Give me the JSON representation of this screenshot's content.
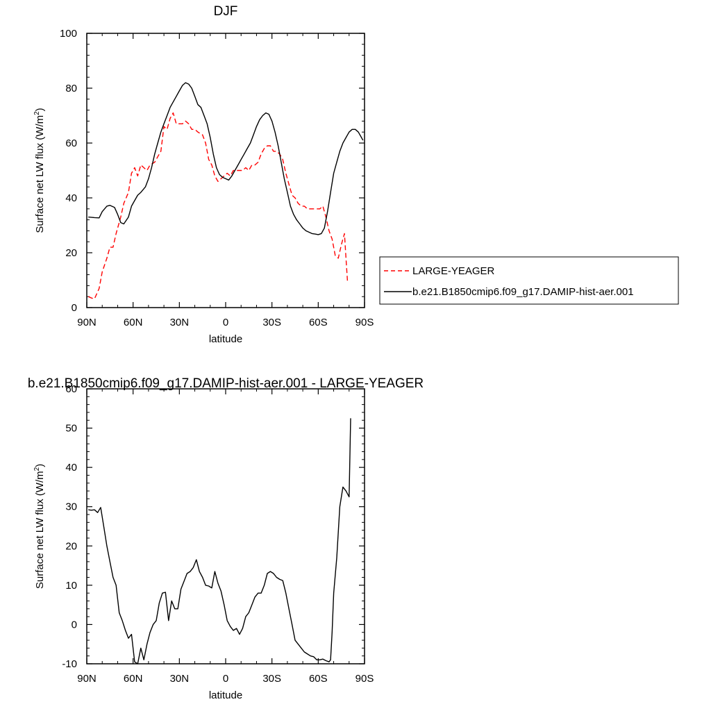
{
  "chart_data": [
    {
      "type": "line",
      "title": "DJF",
      "xlabel": "latitude",
      "ylabel": "Surface net LW flux (W/m",
      "ylabel_superscript": "2",
      "ylabel_suffix": ")",
      "xlim": [
        90,
        -90
      ],
      "ylim": [
        0,
        100
      ],
      "x_ticks": [
        90,
        60,
        30,
        0,
        -30,
        -60,
        -90
      ],
      "x_tick_labels": [
        "90N",
        "60N",
        "30N",
        "0",
        "30S",
        "60S",
        "90S"
      ],
      "y_ticks": [
        0,
        20,
        40,
        60,
        80,
        100
      ],
      "y_tick_labels": [
        "0",
        "20",
        "40",
        "60",
        "80",
        "100"
      ],
      "legend_position": "right",
      "series": [
        {
          "name": "LARGE-YEAGER",
          "color": "#ff0000",
          "dash": "dashed",
          "points": [
            [
              89,
              4
            ],
            [
              87,
              3.5
            ],
            [
              85,
              3.2
            ],
            [
              82,
              7
            ],
            [
              80,
              13
            ],
            [
              77,
              18
            ],
            [
              75,
              22
            ],
            [
              73,
              22
            ],
            [
              71,
              27
            ],
            [
              68,
              33
            ],
            [
              66,
              38
            ],
            [
              63,
              42
            ],
            [
              61,
              49
            ],
            [
              59,
              51
            ],
            [
              57,
              48
            ],
            [
              55,
              52
            ],
            [
              53,
              51
            ],
            [
              51,
              50
            ],
            [
              49,
              52
            ],
            [
              46,
              53
            ],
            [
              44,
              55
            ],
            [
              42,
              57
            ],
            [
              40,
              66
            ],
            [
              38,
              65
            ],
            [
              36,
              69
            ],
            [
              34,
              71
            ],
            [
              32,
              67
            ],
            [
              30,
              67
            ],
            [
              28,
              67
            ],
            [
              26,
              68
            ],
            [
              24,
              67
            ],
            [
              22,
              65
            ],
            [
              20,
              65
            ],
            [
              18,
              64
            ],
            [
              15,
              63
            ],
            [
              13,
              60
            ],
            [
              11,
              54
            ],
            [
              9,
              52
            ],
            [
              7,
              48
            ],
            [
              5,
              46
            ],
            [
              3,
              47
            ],
            [
              1,
              48
            ],
            [
              -1,
              49
            ],
            [
              -3,
              48
            ],
            [
              -5,
              50
            ],
            [
              -7,
              50
            ],
            [
              -9,
              50
            ],
            [
              -11,
              50
            ],
            [
              -13,
              51
            ],
            [
              -15,
              50
            ],
            [
              -17,
              52
            ],
            [
              -19,
              52
            ],
            [
              -21,
              53
            ],
            [
              -23,
              56
            ],
            [
              -25,
              58
            ],
            [
              -27,
              59
            ],
            [
              -29,
              59
            ],
            [
              -31,
              57
            ],
            [
              -33,
              57
            ],
            [
              -35,
              56
            ],
            [
              -37,
              54
            ],
            [
              -39,
              49
            ],
            [
              -41,
              45
            ],
            [
              -43,
              41
            ],
            [
              -45,
              40
            ],
            [
              -47,
              38
            ],
            [
              -49,
              37
            ],
            [
              -51,
              37
            ],
            [
              -53,
              36
            ],
            [
              -55,
              36
            ],
            [
              -57,
              36
            ],
            [
              -59,
              36
            ],
            [
              -61,
              36
            ],
            [
              -63,
              37
            ],
            [
              -65,
              33
            ],
            [
              -67,
              28
            ],
            [
              -69,
              25
            ],
            [
              -71,
              19
            ],
            [
              -73,
              18
            ],
            [
              -75,
              23
            ],
            [
              -77,
              27
            ],
            [
              -78,
              18
            ],
            [
              -79,
              9
            ]
          ]
        },
        {
          "name": "b.e21.B1850cmip6.f09_g17.DAMIP-hist-aer.001",
          "color": "#000000",
          "dash": "solid",
          "points": [
            [
              89,
              33
            ],
            [
              85,
              32.8
            ],
            [
              82,
              32.7
            ],
            [
              80,
              35
            ],
            [
              77,
              37
            ],
            [
              75,
              37.3
            ],
            [
              72,
              36.5
            ],
            [
              70,
              34
            ],
            [
              68,
              31
            ],
            [
              66,
              30.5
            ],
            [
              63,
              33
            ],
            [
              61,
              37
            ],
            [
              59,
              39
            ],
            [
              57,
              41
            ],
            [
              55,
              42
            ],
            [
              52,
              44
            ],
            [
              50,
              47
            ],
            [
              48,
              51
            ],
            [
              46,
              56
            ],
            [
              44,
              60
            ],
            [
              42,
              64
            ],
            [
              40,
              67
            ],
            [
              38,
              70
            ],
            [
              36,
              73
            ],
            [
              34,
              75
            ],
            [
              32,
              77
            ],
            [
              30,
              79
            ],
            [
              28,
              81
            ],
            [
              26,
              82
            ],
            [
              24,
              81.5
            ],
            [
              22,
              80
            ],
            [
              20,
              77
            ],
            [
              18,
              74
            ],
            [
              16,
              73
            ],
            [
              14,
              70
            ],
            [
              12,
              67
            ],
            [
              10,
              62
            ],
            [
              8,
              56
            ],
            [
              6,
              51
            ],
            [
              4,
              48.5
            ],
            [
              2,
              47.5
            ],
            [
              0,
              47
            ],
            [
              -2,
              46.5
            ],
            [
              -4,
              48
            ],
            [
              -6,
              50
            ],
            [
              -8,
              52
            ],
            [
              -10,
              54
            ],
            [
              -12,
              56
            ],
            [
              -14,
              58
            ],
            [
              -16,
              60
            ],
            [
              -18,
              63
            ],
            [
              -20,
              66
            ],
            [
              -22,
              68.5
            ],
            [
              -24,
              70
            ],
            [
              -26,
              71
            ],
            [
              -28,
              70.5
            ],
            [
              -30,
              68
            ],
            [
              -32,
              64
            ],
            [
              -34,
              59
            ],
            [
              -36,
              53
            ],
            [
              -38,
              47
            ],
            [
              -40,
              42
            ],
            [
              -42,
              37
            ],
            [
              -44,
              34
            ],
            [
              -46,
              32
            ],
            [
              -48,
              30.5
            ],
            [
              -50,
              29
            ],
            [
              -52,
              28
            ],
            [
              -54,
              27.5
            ],
            [
              -56,
              27
            ],
            [
              -58,
              26.8
            ],
            [
              -60,
              26.6
            ],
            [
              -62,
              27
            ],
            [
              -64,
              29
            ],
            [
              -66,
              35
            ],
            [
              -68,
              42
            ],
            [
              -70,
              49
            ],
            [
              -72,
              53
            ],
            [
              -74,
              57
            ],
            [
              -76,
              60
            ],
            [
              -78,
              62
            ],
            [
              -80,
              64
            ],
            [
              -82,
              65
            ],
            [
              -84,
              65
            ],
            [
              -86,
              64
            ],
            [
              -88,
              62
            ],
            [
              -89,
              61
            ]
          ]
        }
      ]
    },
    {
      "type": "line",
      "title": "b.e21.B1850cmip6.f09_g17.DAMIP-hist-aer.001 - LARGE-YEAGER",
      "xlabel": "latitude",
      "ylabel": "Surface net LW flux (W/m",
      "ylabel_superscript": "2",
      "ylabel_suffix": ")",
      "xlim": [
        90,
        -90
      ],
      "ylim": [
        -10,
        60
      ],
      "x_ticks": [
        90,
        60,
        30,
        0,
        -30,
        -60,
        -90
      ],
      "x_tick_labels": [
        "90N",
        "60N",
        "30N",
        "0",
        "30S",
        "60S",
        "90S"
      ],
      "y_ticks": [
        -10,
        0,
        10,
        20,
        30,
        40,
        50,
        60
      ],
      "y_tick_labels": [
        "-10",
        "0",
        "10",
        "20",
        "30",
        "40",
        "50",
        "60"
      ],
      "series": [
        {
          "color": "#000000",
          "dash": "solid",
          "points": [
            [
              89,
              29.2
            ],
            [
              87,
              29.1
            ],
            [
              85,
              29.2
            ],
            [
              83,
              28.5
            ],
            [
              81,
              29.8
            ],
            [
              79,
              25
            ],
            [
              77,
              20
            ],
            [
              75,
              16
            ],
            [
              73,
              12
            ],
            [
              71,
              10
            ],
            [
              69,
              3
            ],
            [
              67,
              1
            ],
            [
              65,
              -1.5
            ],
            [
              63,
              -3.5
            ],
            [
              61,
              -2.5
            ],
            [
              59,
              -9.5
            ],
            [
              57,
              -10
            ],
            [
              55,
              -6
            ],
            [
              53,
              -9
            ],
            [
              51,
              -5
            ],
            [
              49,
              -2
            ],
            [
              47,
              0
            ],
            [
              45,
              1
            ],
            [
              43,
              5.5
            ],
            [
              41,
              8
            ],
            [
              39,
              8.2
            ],
            [
              37,
              1
            ],
            [
              35,
              6
            ],
            [
              33,
              4
            ],
            [
              31,
              4
            ],
            [
              29,
              9
            ],
            [
              27,
              11
            ],
            [
              25,
              13
            ],
            [
              23,
              13.5
            ],
            [
              21,
              14.5
            ],
            [
              19,
              16.5
            ],
            [
              17,
              13.5
            ],
            [
              15,
              12
            ],
            [
              13,
              10
            ],
            [
              11,
              9.8
            ],
            [
              9,
              9.3
            ],
            [
              7,
              13.5
            ],
            [
              5,
              10.5
            ],
            [
              3,
              8.5
            ],
            [
              1,
              5
            ],
            [
              -1,
              1
            ],
            [
              -3,
              -0.5
            ],
            [
              -5,
              -1.5
            ],
            [
              -7,
              -1
            ],
            [
              -9,
              -2.5
            ],
            [
              -11,
              -1
            ],
            [
              -13,
              2
            ],
            [
              -15,
              3
            ],
            [
              -17,
              5
            ],
            [
              -19,
              7
            ],
            [
              -21,
              8
            ],
            [
              -23,
              8
            ],
            [
              -25,
              10
            ],
            [
              -27,
              13
            ],
            [
              -29,
              13.5
            ],
            [
              -31,
              13
            ],
            [
              -33,
              12
            ],
            [
              -35,
              11.5
            ],
            [
              -37,
              11.2
            ],
            [
              -39,
              8
            ],
            [
              -41,
              4
            ],
            [
              -43,
              0
            ],
            [
              -45,
              -4
            ],
            [
              -47,
              -5
            ],
            [
              -49,
              -6
            ],
            [
              -51,
              -7
            ],
            [
              -53,
              -7.5
            ],
            [
              -55,
              -8
            ],
            [
              -57,
              -8.2
            ],
            [
              -59,
              -9
            ],
            [
              -61,
              -9
            ],
            [
              -63,
              -8.8
            ],
            [
              -65,
              -9.2
            ],
            [
              -67,
              -9.5
            ],
            [
              -68,
              -9
            ],
            [
              -69,
              -2
            ],
            [
              -70,
              8
            ],
            [
              -72,
              17
            ],
            [
              -74,
              30
            ],
            [
              -76,
              35
            ],
            [
              -78,
              34
            ],
            [
              -80,
              32.5
            ],
            [
              -81,
              52.5
            ]
          ]
        }
      ]
    }
  ]
}
